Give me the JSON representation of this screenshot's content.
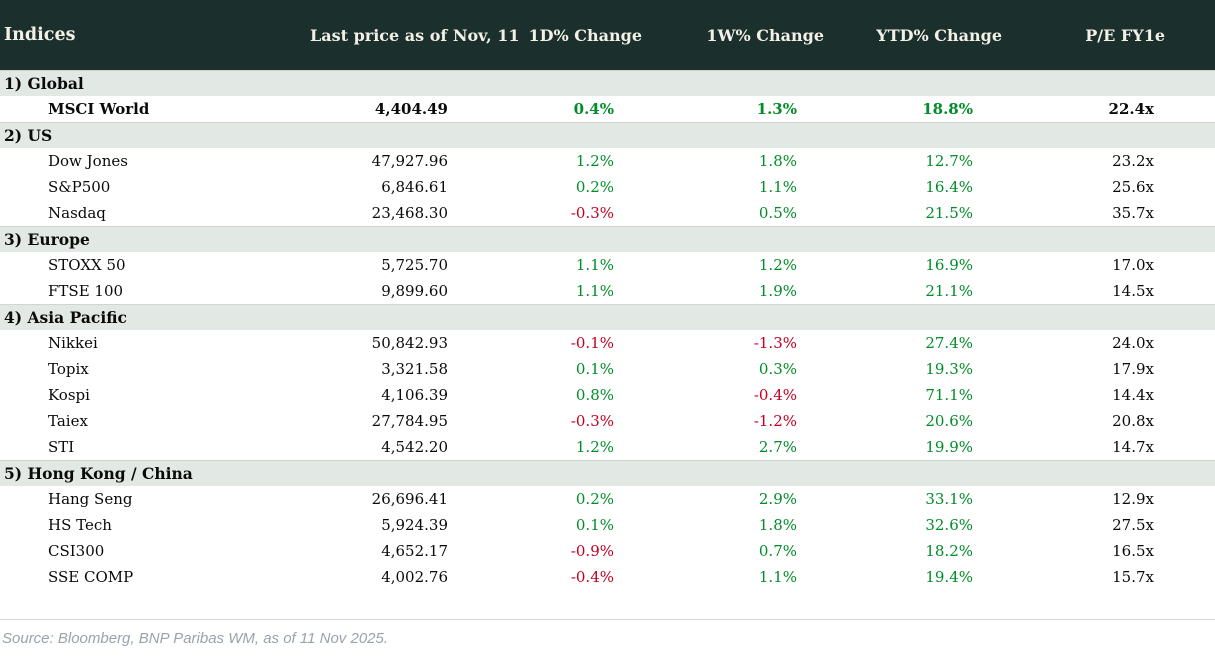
{
  "colors": {
    "header_bg": "#1b302d",
    "header_fg": "#f3f0e7",
    "section_bg": "#e2e8e4",
    "positive": "#008c28",
    "negative": "#c00020",
    "source_fg": "#9aa2ac"
  },
  "chart_data": {
    "type": "table",
    "title": "Indices",
    "columns": [
      "Indices",
      "Last price as of Nov, 11",
      "1D% Change",
      "1W% Change",
      "YTD% Change",
      "P/E FY1e"
    ],
    "sections": [
      {
        "label": "1) Global",
        "rows": [
          {
            "name": "MSCI World",
            "price": "4,404.49",
            "d1": "0.4%",
            "w1": "1.3%",
            "ytd": "18.8%",
            "pe": "22.4x",
            "bold": true
          }
        ]
      },
      {
        "label": "2) US",
        "rows": [
          {
            "name": "Dow Jones",
            "price": "47,927.96",
            "d1": "1.2%",
            "w1": "1.8%",
            "ytd": "12.7%",
            "pe": "23.2x"
          },
          {
            "name": "S&P500",
            "price": "6,846.61",
            "d1": "0.2%",
            "w1": "1.1%",
            "ytd": "16.4%",
            "pe": "25.6x"
          },
          {
            "name": "Nasdaq",
            "price": "23,468.30",
            "d1": "-0.3%",
            "w1": "0.5%",
            "ytd": "21.5%",
            "pe": "35.7x"
          }
        ]
      },
      {
        "label": "3) Europe",
        "rows": [
          {
            "name": "STOXX 50",
            "price": "5,725.70",
            "d1": "1.1%",
            "w1": "1.2%",
            "ytd": "16.9%",
            "pe": "17.0x"
          },
          {
            "name": "FTSE 100",
            "price": "9,899.60",
            "d1": "1.1%",
            "w1": "1.9%",
            "ytd": "21.1%",
            "pe": "14.5x"
          }
        ]
      },
      {
        "label": "4) Asia Pacific",
        "rows": [
          {
            "name": "Nikkei",
            "price": "50,842.93",
            "d1": "-0.1%",
            "w1": "-1.3%",
            "ytd": "27.4%",
            "pe": "24.0x"
          },
          {
            "name": "Topix",
            "price": "3,321.58",
            "d1": "0.1%",
            "w1": "0.3%",
            "ytd": "19.3%",
            "pe": "17.9x"
          },
          {
            "name": "Kospi",
            "price": "4,106.39",
            "d1": "0.8%",
            "w1": "-0.4%",
            "ytd": "71.1%",
            "pe": "14.4x"
          },
          {
            "name": "Taiex",
            "price": "27,784.95",
            "d1": "-0.3%",
            "w1": "-1.2%",
            "ytd": "20.6%",
            "pe": "20.8x"
          },
          {
            "name": "STI",
            "price": "4,542.20",
            "d1": "1.2%",
            "w1": "2.7%",
            "ytd": "19.9%",
            "pe": "14.7x"
          }
        ]
      },
      {
        "label": "5) Hong Kong / China",
        "rows": [
          {
            "name": "Hang Seng",
            "price": "26,696.41",
            "d1": "0.2%",
            "w1": "2.9%",
            "ytd": "33.1%",
            "pe": "12.9x"
          },
          {
            "name": "HS Tech",
            "price": "5,924.39",
            "d1": "0.1%",
            "w1": "1.8%",
            "ytd": "32.6%",
            "pe": "27.5x"
          },
          {
            "name": "CSI300",
            "price": "4,652.17",
            "d1": "-0.9%",
            "w1": "0.7%",
            "ytd": "18.2%",
            "pe": "16.5x"
          },
          {
            "name": "SSE COMP",
            "price": "4,002.76",
            "d1": "-0.4%",
            "w1": "1.1%",
            "ytd": "19.4%",
            "pe": "15.7x"
          }
        ]
      }
    ]
  },
  "footer": {
    "source": "Source: Bloomberg, BNP Paribas WM, as of 11 Nov 2025."
  }
}
